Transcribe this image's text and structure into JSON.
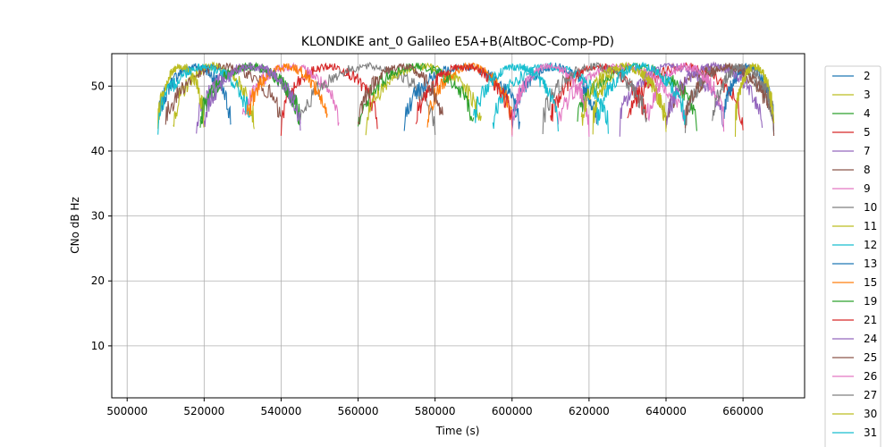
{
  "chart_data": {
    "type": "line",
    "title": "KLONDIKE ant_0 Galileo E5A+B(AltBOC-Comp-PD)",
    "xlabel": "Time (s)",
    "ylabel": "CNo dB Hz",
    "xlim": [
      496000,
      676000
    ],
    "ylim": [
      2,
      55
    ],
    "xticks": [
      500000,
      520000,
      540000,
      560000,
      580000,
      600000,
      620000,
      640000,
      660000
    ],
    "xtick_labels": [
      "500000",
      "520000",
      "540000",
      "560000",
      "580000",
      "600000",
      "620000",
      "640000",
      "660000"
    ],
    "yticks": [
      10,
      20,
      30,
      40,
      50
    ],
    "ytick_labels": [
      "10",
      "20",
      "30",
      "40",
      "50"
    ],
    "grid": true,
    "legend_position": "outside-right",
    "series": [
      {
        "name": "2",
        "color": "#1f77b4",
        "passes": [
          [
            508000,
            527000
          ],
          [
            600000,
            622000
          ]
        ]
      },
      {
        "name": "3",
        "color": "#bcbd22",
        "passes": [
          [
            512000,
            533000
          ],
          [
            621000,
            640000
          ]
        ]
      },
      {
        "name": "4",
        "color": "#2ca02c",
        "passes": [
          [
            519000,
            545000
          ],
          [
            617000,
            648000
          ]
        ]
      },
      {
        "name": "5",
        "color": "#d62728",
        "passes": [
          [
            540000,
            565000
          ],
          [
            630000,
            660000
          ]
        ]
      },
      {
        "name": "7",
        "color": "#9467bd",
        "passes": [
          [
            518000,
            545000
          ],
          [
            628000,
            655000
          ]
        ]
      },
      {
        "name": "8",
        "color": "#8c564b",
        "passes": [
          [
            510000,
            540000
          ],
          [
            640000,
            668000
          ]
        ]
      },
      {
        "name": "9",
        "color": "#e377c2",
        "passes": [
          [
            530000,
            555000
          ],
          [
            612000,
            645000
          ]
        ]
      },
      {
        "name": "10",
        "color": "#7f7f7f",
        "passes": [
          [
            545000,
            580000
          ],
          [
            645000,
            668000
          ]
        ]
      },
      {
        "name": "11",
        "color": "#bcbd22",
        "passes": [
          [
            508000,
            520000
          ],
          [
            562000,
            592000
          ]
        ]
      },
      {
        "name": "12",
        "color": "#17becf",
        "passes": [
          [
            508000,
            532000
          ],
          [
            595000,
            625000
          ]
        ]
      },
      {
        "name": "13",
        "color": "#1f77b4",
        "passes": [
          [
            572000,
            602000
          ],
          [
            655000,
            668000
          ]
        ]
      },
      {
        "name": "15",
        "color": "#ff7f0e",
        "passes": [
          [
            531000,
            552000
          ],
          [
            578000,
            600000
          ]
        ]
      },
      {
        "name": "19",
        "color": "#2ca02c",
        "passes": [
          [
            519000,
            545000
          ],
          [
            560000,
            590000
          ]
        ]
      },
      {
        "name": "21",
        "color": "#d62728",
        "passes": [
          [
            575000,
            600000
          ],
          [
            610000,
            635000
          ]
        ]
      },
      {
        "name": "24",
        "color": "#9467bd",
        "passes": [
          [
            520000,
            545000
          ],
          [
            640000,
            665000
          ]
        ]
      },
      {
        "name": "25",
        "color": "#8c564b",
        "passes": [
          [
            560000,
            582000
          ],
          [
            645000,
            668000
          ]
        ]
      },
      {
        "name": "26",
        "color": "#e377c2",
        "passes": [
          [
            600000,
            620000
          ],
          [
            635000,
            655000
          ]
        ]
      },
      {
        "name": "27",
        "color": "#7f7f7f",
        "passes": [
          [
            608000,
            635000
          ],
          [
            652000,
            668000
          ]
        ]
      },
      {
        "name": "30",
        "color": "#bcbd22",
        "passes": [
          [
            618000,
            640000
          ],
          [
            658000,
            668000
          ]
        ]
      },
      {
        "name": "31",
        "color": "#17becf",
        "passes": [
          [
            590000,
            612000
          ],
          [
            622000,
            645000
          ]
        ]
      }
    ]
  }
}
